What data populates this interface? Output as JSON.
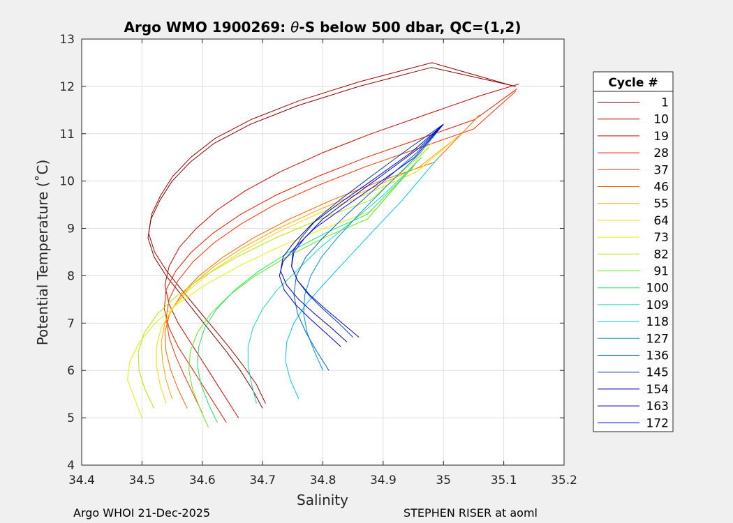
{
  "chart_data": {
    "type": "line",
    "title": "Argo WMO 1900269: θ-S below 500 dbar,  QC=(1,2)",
    "title_parts": {
      "pre": "Argo WMO 1900269: ",
      "symbol": "θ",
      "post": "-S below 500 dbar,  QC=(1,2)"
    },
    "xlabel": "Salinity",
    "ylabel": "Potential Temperature (˚C)",
    "xlim": [
      34.4,
      35.2
    ],
    "ylim": [
      4,
      13
    ],
    "xticks": [
      34.4,
      34.5,
      34.6,
      34.7,
      34.8,
      34.9,
      35.0,
      35.1,
      35.2
    ],
    "xtick_labels": [
      "34.4",
      "34.5",
      "34.6",
      "34.7",
      "34.8",
      "34.9",
      "35",
      "35.1",
      "35.2"
    ],
    "yticks": [
      4,
      5,
      6,
      7,
      8,
      9,
      10,
      11,
      12,
      13
    ],
    "ytick_labels": [
      "4",
      "5",
      "6",
      "7",
      "8",
      "9",
      "10",
      "11",
      "12",
      "13"
    ],
    "grid": true,
    "legend_title": "Cycle #",
    "legend_position": "right-outside",
    "series": [
      {
        "name": "1",
        "color": "#800000",
        "s": [
          34.7,
          34.683,
          34.663,
          34.64,
          34.615,
          34.59,
          34.565,
          34.54,
          34.52,
          34.51,
          34.515,
          34.53,
          34.55,
          34.58,
          34.62,
          34.68,
          34.76,
          34.86,
          34.98,
          35.12
        ],
        "t": [
          5.2,
          5.6,
          6.0,
          6.4,
          6.8,
          7.2,
          7.6,
          8.0,
          8.4,
          8.8,
          9.2,
          9.6,
          10.0,
          10.4,
          10.8,
          11.2,
          11.6,
          12.0,
          12.4,
          12.0
        ]
      },
      {
        "name": "10",
        "color": "#a00000",
        "s": [
          34.705,
          34.69,
          34.668,
          34.644,
          34.618,
          34.592,
          34.566,
          34.541,
          34.521,
          34.511,
          34.516,
          34.531,
          34.551,
          34.581,
          34.621,
          34.681,
          34.761,
          34.861,
          34.981,
          35.118
        ],
        "t": [
          5.3,
          5.7,
          6.1,
          6.5,
          6.9,
          7.3,
          7.7,
          8.1,
          8.5,
          8.9,
          9.3,
          9.7,
          10.1,
          10.5,
          10.9,
          11.3,
          11.7,
          12.1,
          12.5,
          12.0
        ]
      },
      {
        "name": "19",
        "color": "#cc0000",
        "s": [
          34.66,
          34.64,
          34.62,
          34.6,
          34.58,
          34.56,
          34.545,
          34.538,
          34.545,
          34.562,
          34.59,
          34.626,
          34.672,
          34.73,
          34.8,
          34.88,
          34.97,
          35.06,
          35.125
        ],
        "t": [
          5.0,
          5.4,
          5.8,
          6.2,
          6.6,
          7.0,
          7.4,
          7.8,
          8.2,
          8.6,
          9.0,
          9.4,
          9.8,
          10.2,
          10.6,
          11.0,
          11.4,
          11.8,
          12.05
        ]
      },
      {
        "name": "28",
        "color": "#e61a00",
        "s": [
          34.64,
          34.62,
          34.6,
          34.58,
          34.56,
          34.545,
          34.537,
          34.54,
          34.556,
          34.582,
          34.618,
          34.664,
          34.722,
          34.792,
          34.872,
          34.962,
          35.052,
          35.122
        ],
        "t": [
          4.9,
          5.3,
          5.7,
          6.1,
          6.5,
          6.9,
          7.3,
          7.7,
          8.1,
          8.5,
          8.9,
          9.3,
          9.7,
          10.1,
          10.5,
          10.9,
          11.3,
          11.95
        ]
      },
      {
        "name": "37",
        "color": "#ff3300",
        "s": [
          34.6,
          34.585,
          34.57,
          34.556,
          34.545,
          34.54,
          34.545,
          34.56,
          34.585,
          34.62,
          34.665,
          34.72,
          34.79,
          34.87,
          34.96,
          35.05,
          35.12
        ],
        "t": [
          5.1,
          5.5,
          5.9,
          6.3,
          6.7,
          7.1,
          7.5,
          7.9,
          8.3,
          8.7,
          9.1,
          9.5,
          9.9,
          10.3,
          10.7,
          11.1,
          11.9
        ]
      },
      {
        "name": "46",
        "color": "#ff6600",
        "s": [
          34.575,
          34.56,
          34.548,
          34.54,
          34.538,
          34.546,
          34.565,
          34.595,
          34.635,
          34.685,
          34.745,
          34.815,
          34.895,
          34.985,
          35.06
        ],
        "t": [
          5.2,
          5.6,
          6.0,
          6.4,
          6.8,
          7.2,
          7.6,
          8.0,
          8.4,
          8.8,
          9.2,
          9.6,
          10.0,
          10.4,
          11.4
        ]
      },
      {
        "name": "55",
        "color": "#ffa500",
        "s": [
          34.55,
          34.54,
          34.534,
          34.532,
          34.538,
          34.555,
          34.582,
          34.62,
          34.668,
          34.726,
          34.794,
          34.872,
          34.96,
          35.03
        ],
        "t": [
          5.4,
          5.8,
          6.2,
          6.6,
          7.0,
          7.4,
          7.8,
          8.2,
          8.6,
          9.0,
          9.4,
          9.8,
          10.3,
          11.0
        ]
      },
      {
        "name": "64",
        "color": "#ffd700",
        "s": [
          34.54,
          34.53,
          34.524,
          34.524,
          34.532,
          34.55,
          34.578,
          34.616,
          34.664,
          34.722,
          34.79,
          34.868,
          34.956,
          35.02
        ],
        "t": [
          5.3,
          5.7,
          6.1,
          6.5,
          6.9,
          7.3,
          7.7,
          8.1,
          8.5,
          8.9,
          9.3,
          9.7,
          10.2,
          10.9
        ]
      },
      {
        "name": "73",
        "color": "#e6f000",
        "s": [
          34.5,
          34.488,
          34.476,
          34.48,
          34.496,
          34.522,
          34.558,
          34.604,
          34.66,
          34.726,
          34.802,
          34.888,
          34.98
        ],
        "t": [
          5.0,
          5.4,
          5.8,
          6.2,
          6.6,
          7.0,
          7.4,
          7.8,
          8.2,
          8.6,
          9.0,
          9.4,
          10.8
        ]
      },
      {
        "name": "82",
        "color": "#b4e600",
        "s": [
          34.52,
          34.505,
          34.495,
          34.494,
          34.504,
          34.526,
          34.56,
          34.604,
          34.658,
          34.722,
          34.796,
          34.88,
          34.975
        ],
        "t": [
          5.2,
          5.6,
          6.0,
          6.4,
          6.8,
          7.2,
          7.6,
          8.0,
          8.4,
          8.8,
          9.2,
          9.6,
          10.7
        ]
      },
      {
        "name": "91",
        "color": "#66e61a",
        "s": [
          34.61,
          34.596,
          34.584,
          34.578,
          34.58,
          34.592,
          34.614,
          34.646,
          34.688,
          34.74,
          34.802,
          34.874,
          34.956
        ],
        "t": [
          4.8,
          5.2,
          5.6,
          6.0,
          6.4,
          6.8,
          7.2,
          7.6,
          8.0,
          8.4,
          8.8,
          9.2,
          10.4
        ]
      },
      {
        "name": "100",
        "color": "#1ae666",
        "s": [
          34.625,
          34.61,
          34.598,
          34.592,
          34.594,
          34.604,
          34.624,
          34.654,
          34.694,
          34.744,
          34.804,
          34.874,
          34.95
        ],
        "t": [
          4.9,
          5.3,
          5.7,
          6.1,
          6.5,
          6.9,
          7.3,
          7.7,
          8.1,
          8.5,
          8.9,
          9.3,
          10.3
        ]
      },
      {
        "name": "109",
        "color": "#1ad9b3",
        "s": [
          34.69,
          34.682,
          34.676,
          34.676,
          34.684,
          34.7,
          34.724,
          34.756,
          34.796,
          34.844,
          34.9,
          34.964
        ],
        "t": [
          5.3,
          5.7,
          6.1,
          6.5,
          6.9,
          7.3,
          7.7,
          8.1,
          8.6,
          9.1,
          9.7,
          10.5
        ]
      },
      {
        "name": "118",
        "color": "#00c8e6",
        "s": [
          34.76,
          34.746,
          34.738,
          34.74,
          34.752,
          34.772,
          34.8,
          34.836,
          34.88,
          34.932,
          34.992
        ],
        "t": [
          5.4,
          5.8,
          6.2,
          6.6,
          7.0,
          7.4,
          7.8,
          8.3,
          8.9,
          9.6,
          10.5
        ]
      },
      {
        "name": "127",
        "color": "#0096d2",
        "s": [
          34.8,
          34.786,
          34.774,
          34.768,
          34.77,
          34.78,
          34.798,
          34.824,
          34.86,
          34.906,
          34.962,
          35.0
        ],
        "t": [
          6.0,
          6.4,
          6.8,
          7.2,
          7.6,
          8.0,
          8.4,
          8.8,
          9.3,
          9.9,
          10.6,
          11.2
        ]
      },
      {
        "name": "136",
        "color": "#0064c8",
        "s": [
          34.81,
          34.79,
          34.772,
          34.758,
          34.752,
          34.756,
          34.772,
          34.8,
          34.84,
          34.892,
          34.956,
          35.0
        ],
        "t": [
          6.0,
          6.4,
          6.8,
          7.2,
          7.6,
          8.0,
          8.4,
          8.8,
          9.3,
          9.9,
          10.6,
          11.2
        ]
      },
      {
        "name": "145",
        "color": "#0032b4",
        "s": [
          34.85,
          34.826,
          34.8,
          34.776,
          34.758,
          34.748,
          34.75,
          34.764,
          34.79,
          34.828,
          34.88,
          34.944,
          35.0
        ],
        "t": [
          6.7,
          7.0,
          7.3,
          7.6,
          7.9,
          8.2,
          8.5,
          8.8,
          9.2,
          9.6,
          10.1,
          10.7,
          11.2
        ]
      },
      {
        "name": "154",
        "color": "#0000aa",
        "s": [
          34.84,
          34.814,
          34.786,
          34.76,
          34.74,
          34.73,
          34.734,
          34.752,
          34.782,
          34.824,
          34.88,
          34.946,
          35.0
        ],
        "t": [
          6.6,
          6.9,
          7.2,
          7.5,
          7.8,
          8.1,
          8.4,
          8.7,
          9.1,
          9.5,
          10.0,
          10.6,
          11.2
        ]
      },
      {
        "name": "163",
        "color": "#0000c8",
        "s": [
          34.86,
          34.832,
          34.804,
          34.778,
          34.758,
          34.748,
          34.752,
          34.77,
          34.8,
          34.842,
          34.896,
          34.96,
          35.0
        ],
        "t": [
          6.7,
          7.0,
          7.3,
          7.6,
          7.9,
          8.2,
          8.5,
          8.8,
          9.2,
          9.6,
          10.1,
          10.7,
          11.2
        ]
      },
      {
        "name": "172",
        "color": "#0000e6",
        "s": [
          34.83,
          34.804,
          34.778,
          34.754,
          34.736,
          34.728,
          34.734,
          34.754,
          34.786,
          34.83,
          34.886,
          34.952,
          35.0
        ],
        "t": [
          6.5,
          6.8,
          7.1,
          7.4,
          7.7,
          8.0,
          8.3,
          8.6,
          9.0,
          9.4,
          9.9,
          10.5,
          11.2
        ]
      }
    ]
  },
  "footer": {
    "left": "Argo WHOI 21-Dec-2025",
    "right": "STEPHEN RISER at aoml"
  }
}
